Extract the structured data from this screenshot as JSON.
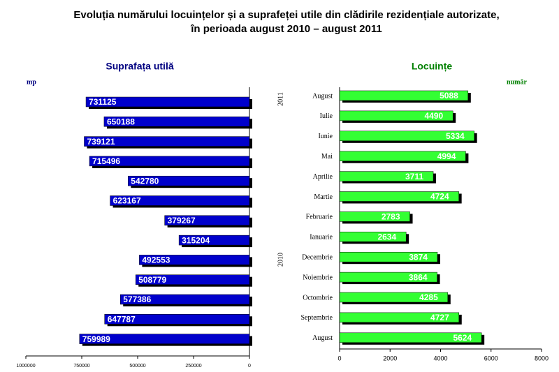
{
  "title": [
    "Evoluția numărului locuințelor și a suprafeței utile din clădirile rezidențiale autorizate,",
    "în perioada august 2010 – august 2011"
  ],
  "chart_data": [
    {
      "type": "bar",
      "orientation": "left",
      "title": "Suprafața utilă",
      "unit": "mp",
      "color": "#0000cc",
      "values": [
        731125,
        650188,
        739121,
        715496,
        542780,
        623167,
        379267,
        315204,
        492553,
        508779,
        577386,
        647787,
        759989
      ],
      "xlim": [
        0,
        1000000
      ],
      "xticks": [
        1000000,
        750000,
        500000,
        250000,
        0
      ]
    },
    {
      "type": "bar",
      "orientation": "right",
      "title": "Locuințe",
      "unit": "număr",
      "color": "#33ff33",
      "categories": [
        "August",
        "Iulie",
        "Iunie",
        "Mai",
        "Aprilie",
        "Martie",
        "Februarie",
        "Ianuarie",
        "Decembrie",
        "Noiembrie",
        "Octombrie",
        "Septembrie",
        "August"
      ],
      "year_labels": [
        "2011",
        "2010"
      ],
      "values": [
        5088,
        4490,
        5334,
        4994,
        3711,
        4724,
        2783,
        2634,
        3874,
        3864,
        4285,
        4727,
        5624
      ],
      "xlim": [
        0,
        8000
      ],
      "xticks": [
        0,
        2000,
        4000,
        6000,
        8000
      ]
    }
  ]
}
